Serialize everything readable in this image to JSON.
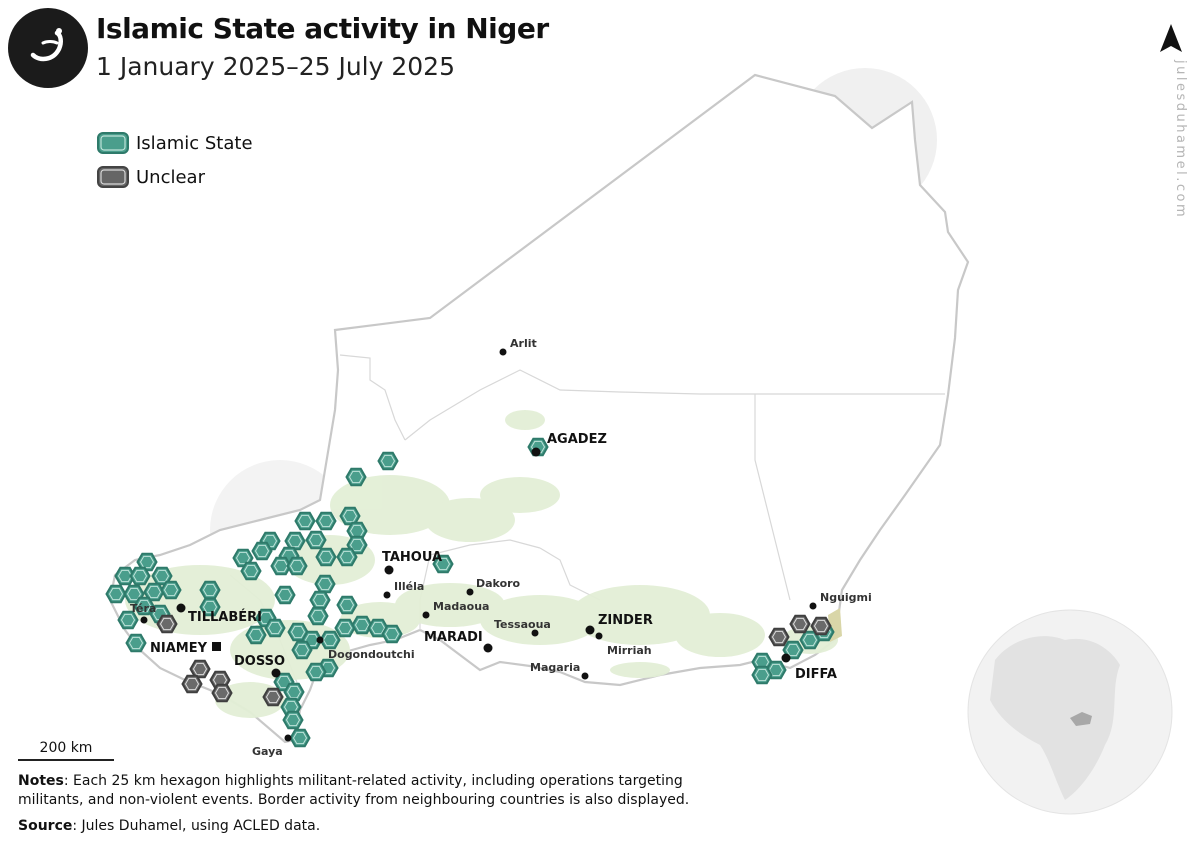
{
  "header": {
    "title": "Islamic State activity in Niger",
    "subtitle": "1 January 2025–25 July 2025"
  },
  "legend": [
    {
      "label": "Islamic State",
      "color": "#4a9e8c",
      "border": "#2e7a6a"
    },
    {
      "label": "Unclear",
      "color": "#666666",
      "border": "#444444"
    }
  ],
  "watermark": "julesduhamel.com",
  "scale_label": "200 km",
  "notes": {
    "label": "Notes",
    "text": ": Each 25 km hexagon highlights militant-related activity, including operations targeting militants, and non-violent events. Border activity from neighbouring countries is also displayed."
  },
  "source": {
    "label": "Source",
    "text": ": Jules Duhamel, using ACLED data."
  },
  "colors": {
    "islamic_state": "#4a9e8c",
    "unclear": "#6a6a6a",
    "vegetation": "#e3efd6",
    "border": "#c8c8c8"
  },
  "places": {
    "arlit": "Arlit",
    "agadez": "AGADEZ",
    "tahoua": "TAHOUA",
    "illela": "Illéla",
    "dakoro": "Dakoro",
    "madaoua": "Madaoua",
    "maradi": "MARADI",
    "tessaoua": "Tessaoua",
    "zinder": "ZINDER",
    "mirriah": "Mirriah",
    "magaria": "Magaria",
    "nguigmi": "Nguigmi",
    "diffa": "DIFFA",
    "tera": "Téra",
    "tillaberi": "TILLABÉRI",
    "niamey": "NIAMEY",
    "dosso": "DOSSO",
    "dogondoutchi": "Dogondoutchi",
    "gaya": "Gaya"
  }
}
